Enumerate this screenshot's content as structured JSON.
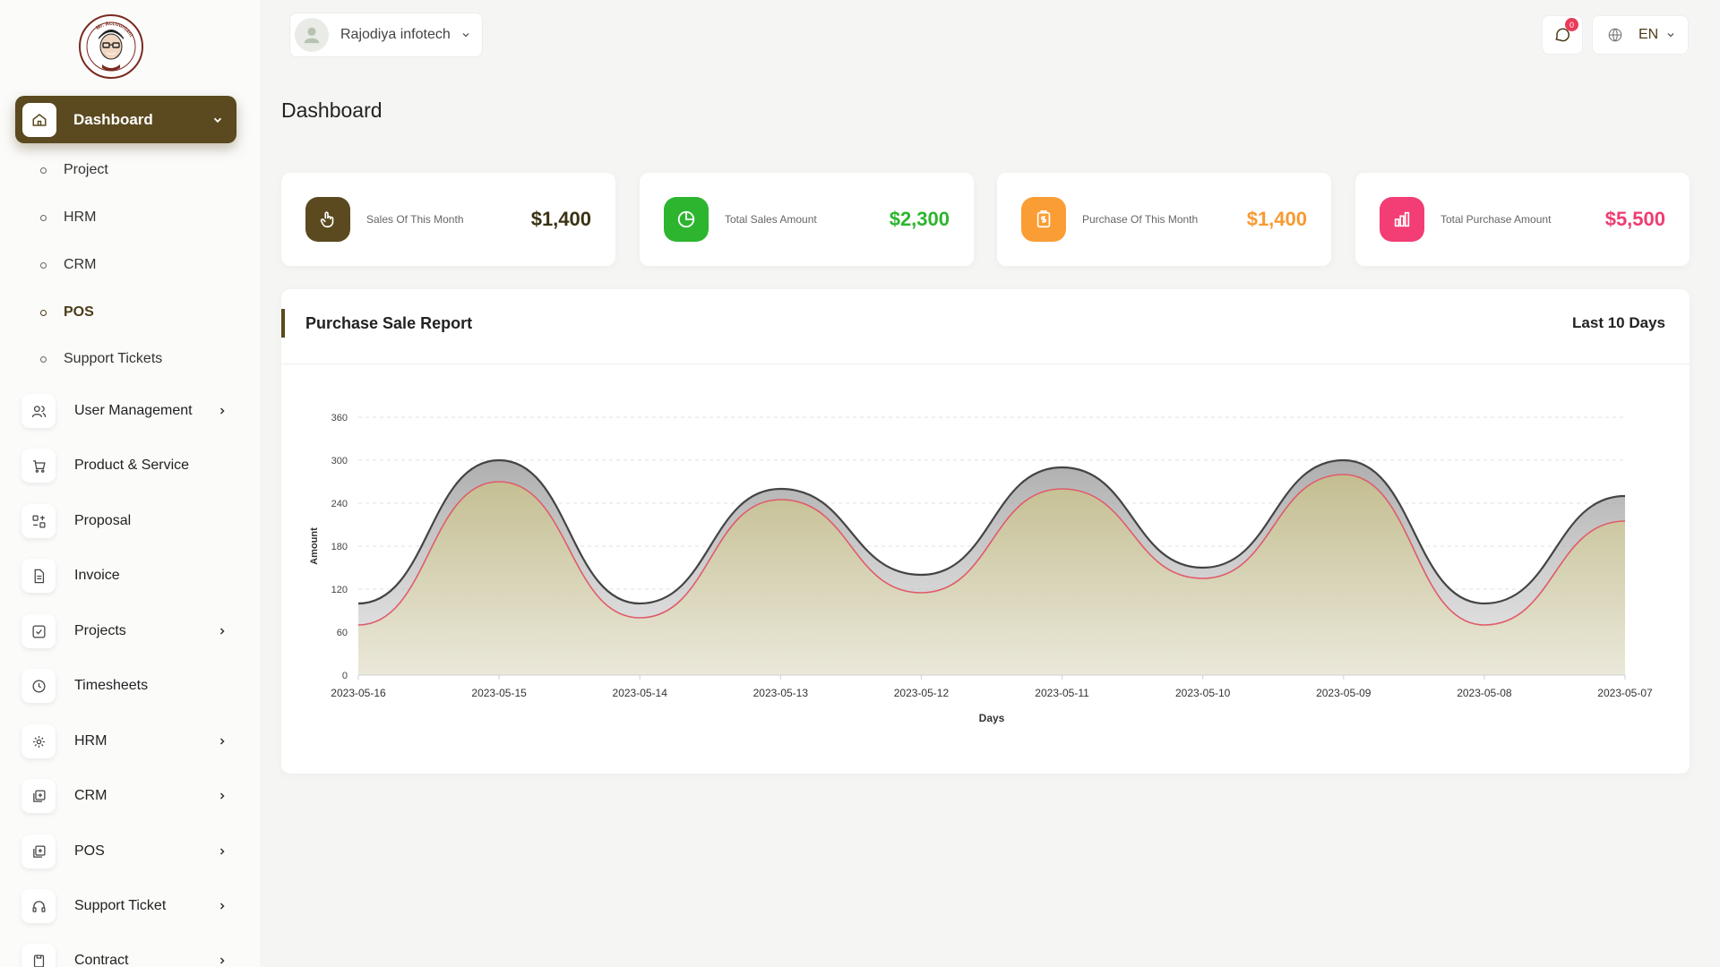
{
  "logo": {
    "brand_text": "Mr. Accountant",
    "tagline": "Gatekeeper To Financial Management"
  },
  "sidebar": {
    "dashboard": {
      "label": "Dashboard",
      "icon": "home-icon"
    },
    "dashboard_subitems": [
      {
        "label": "Project"
      },
      {
        "label": "HRM"
      },
      {
        "label": "CRM"
      },
      {
        "label": "POS",
        "active": true
      },
      {
        "label": "Support Tickets"
      }
    ],
    "items": [
      {
        "label": "User Management",
        "icon": "users-icon",
        "has_submenu": true
      },
      {
        "label": "Product & Service",
        "icon": "cart-icon",
        "has_submenu": false
      },
      {
        "label": "Proposal",
        "icon": "proposal-icon",
        "has_submenu": false
      },
      {
        "label": "Invoice",
        "icon": "invoice-icon",
        "has_submenu": false
      },
      {
        "label": "Projects",
        "icon": "checkbox-icon",
        "has_submenu": true
      },
      {
        "label": "Timesheets",
        "icon": "clock-icon",
        "has_submenu": false
      },
      {
        "label": "HRM",
        "icon": "hrm-icon",
        "has_submenu": true
      },
      {
        "label": "CRM",
        "icon": "layers-icon",
        "has_submenu": true
      },
      {
        "label": "POS",
        "icon": "layers-icon",
        "has_submenu": true
      },
      {
        "label": "Support Ticket",
        "icon": "headphones-icon",
        "has_submenu": true
      },
      {
        "label": "Contract",
        "icon": "contract-icon",
        "has_submenu": true
      }
    ]
  },
  "topbar": {
    "company_name": "Rajodiya infotech",
    "messages_count": "0",
    "language": "EN"
  },
  "page": {
    "title": "Dashboard"
  },
  "stats": [
    {
      "label": "Sales Of This Month",
      "value": "$1,400",
      "color": "#5b4a1f",
      "value_color": "#3a3214",
      "icon": "hand-pointer-icon"
    },
    {
      "label": "Total Sales Amount",
      "value": "$2,300",
      "color": "#2db52f",
      "value_color": "#2db52f",
      "icon": "pie-chart-icon"
    },
    {
      "label": "Purchase Of This Month",
      "value": "$1,400",
      "color": "#fb9d35",
      "value_color": "#f79a33",
      "icon": "clipboard-dollar-icon"
    },
    {
      "label": "Total Purchase Amount",
      "value": "$5,500",
      "color": "#f23e74",
      "value_color": "#ee3d72",
      "icon": "bar-chart-icon"
    }
  ],
  "report": {
    "title": "Purchase Sale Report",
    "range": "Last 10 Days"
  },
  "chart_data": {
    "type": "area",
    "xlabel": "Days",
    "ylabel": "Amount",
    "ylim": [
      0,
      360
    ],
    "yticks": [
      0,
      60,
      120,
      180,
      240,
      300,
      360
    ],
    "categories": [
      "2023-05-16",
      "2023-05-15",
      "2023-05-14",
      "2023-05-13",
      "2023-05-12",
      "2023-05-11",
      "2023-05-10",
      "2023-05-09",
      "2023-05-08",
      "2023-05-07"
    ],
    "series": [
      {
        "values": [
          100,
          300,
          100,
          260,
          140,
          290,
          150,
          300,
          100,
          250
        ],
        "color": "#444444",
        "fill": "#b9b9b9"
      },
      {
        "values": [
          70,
          270,
          80,
          245,
          115,
          260,
          135,
          280,
          70,
          215
        ],
        "color": "#e05b6a",
        "fill": "#c9c49a"
      }
    ],
    "grid": true
  }
}
